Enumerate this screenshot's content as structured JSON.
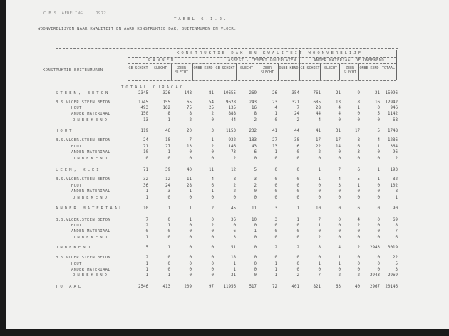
{
  "header_line": "C.B.S. AFDELING ... 1972",
  "table_number": "TABEL 6.1.2.",
  "title": "WOONVERBLIJVEN NAAR KWALITEIT EN AARD KONSTRUKTIE DAK, BUITENMUREN EN VLOER.",
  "table": {
    "row_header": "KONSTRUKTIE BUITENMUREN",
    "super_header": "KONSTRUKTIE DAK EN KWALITEIT WOONVERBLIJF",
    "groups": [
      "PANNEN",
      "ASBEST - CEMENT GOLFPLATEN",
      "ANDER MATERIAAL OF ONBEKEND"
    ],
    "columns": [
      "GE-SCHIKT",
      "SLECHT",
      "ZEER SLECHT",
      "ONBE-KEND",
      "GE-SCHIKT",
      "SLECHT",
      "ZEER SLECHT",
      "ONBE-KEND",
      "GE-SCHIKT",
      "SLECHT",
      "ZEER SLECHT",
      "ONBE-KEND",
      "TOTAAL"
    ],
    "section_title": "TOTAAL CURACAO",
    "rows": [
      {
        "label": "STEEN, BETON",
        "level": 0,
        "values": [
          2345,
          326,
          148,
          81,
          10655,
          269,
          26,
          354,
          761,
          21,
          9,
          21,
          15096
        ]
      },
      {
        "label": "B.S.VLOER.STEEN.BETON",
        "level": 1,
        "values": [
          1745,
          155,
          65,
          54,
          9628,
          243,
          23,
          321,
          685,
          13,
          8,
          16,
          12942
        ]
      },
      {
        "label": "HOUT",
        "level": 2,
        "values": [
          493,
          162,
          75,
          25,
          135,
          16,
          4,
          7,
          28,
          4,
          1,
          0,
          946
        ]
      },
      {
        "label": "ANDER MATERIAAL",
        "level": 2,
        "values": [
          150,
          8,
          8,
          2,
          888,
          8,
          1,
          24,
          44,
          4,
          0,
          5,
          1142
        ]
      },
      {
        "label": "ONBEKEND",
        "level": 3,
        "values": [
          13,
          1,
          2,
          0,
          44,
          2,
          0,
          2,
          4,
          0,
          0,
          0,
          68
        ]
      },
      {
        "label": "HOUT",
        "level": 0,
        "values": [
          119,
          46,
          20,
          3,
          1153,
          232,
          41,
          44,
          41,
          31,
          17,
          5,
          1748
        ]
      },
      {
        "label": "B.S.VLOER.STEEN.BETON",
        "level": 1,
        "values": [
          24,
          18,
          7,
          1,
          932,
          183,
          27,
          38,
          17,
          17,
          8,
          4,
          1286
        ]
      },
      {
        "label": "HOUT",
        "level": 2,
        "values": [
          71,
          27,
          13,
          2,
          146,
          43,
          13,
          6,
          22,
          14,
          6,
          1,
          364
        ]
      },
      {
        "label": "ANDER MATERIAAL",
        "level": 2,
        "values": [
          10,
          1,
          0,
          0,
          73,
          6,
          1,
          0,
          2,
          0,
          3,
          0,
          96
        ]
      },
      {
        "label": "ONBEKEND",
        "level": 3,
        "values": [
          0,
          0,
          0,
          0,
          2,
          0,
          0,
          0,
          0,
          0,
          0,
          0,
          2
        ]
      },
      {
        "label": "LEEM, KLEI",
        "level": 0,
        "values": [
          71,
          39,
          40,
          11,
          12,
          5,
          0,
          0,
          1,
          7,
          6,
          1,
          193
        ]
      },
      {
        "label": "B.S.VLOER.STEEN.BETON",
        "level": 1,
        "values": [
          32,
          12,
          11,
          4,
          8,
          3,
          0,
          0,
          1,
          4,
          5,
          1,
          82
        ]
      },
      {
        "label": "HOUT",
        "level": 2,
        "values": [
          36,
          24,
          28,
          6,
          2,
          2,
          0,
          0,
          0,
          3,
          1,
          0,
          102
        ]
      },
      {
        "label": "ANDER MATERIAAL",
        "level": 2,
        "values": [
          1,
          3,
          1,
          1,
          2,
          0,
          0,
          0,
          0,
          0,
          0,
          0,
          8
        ]
      },
      {
        "label": "ONBEKEND",
        "level": 3,
        "values": [
          1,
          0,
          0,
          0,
          0,
          0,
          0,
          0,
          0,
          0,
          0,
          0,
          1
        ]
      },
      {
        "label": "ANDER MATERIAAL",
        "level": 0,
        "values": [
          10,
          1,
          1,
          2,
          45,
          11,
          3,
          1,
          10,
          0,
          6,
          0,
          90
        ]
      },
      {
        "label": "B.S.VLOER.STEEN.BETON",
        "level": 1,
        "values": [
          7,
          0,
          1,
          0,
          36,
          10,
          3,
          1,
          7,
          0,
          4,
          0,
          69
        ]
      },
      {
        "label": "HOUT",
        "level": 2,
        "values": [
          2,
          1,
          0,
          2,
          0,
          0,
          0,
          0,
          1,
          0,
          2,
          0,
          8
        ]
      },
      {
        "label": "ANDER MATERIAAL",
        "level": 2,
        "values": [
          0,
          0,
          0,
          0,
          6,
          1,
          0,
          0,
          0,
          0,
          0,
          0,
          7
        ]
      },
      {
        "label": "ONBEKEND",
        "level": 3,
        "values": [
          1,
          0,
          0,
          0,
          3,
          0,
          0,
          0,
          2,
          0,
          0,
          0,
          6
        ]
      },
      {
        "label": "ONBEKEND",
        "level": 0,
        "values": [
          5,
          1,
          0,
          0,
          51,
          0,
          2,
          2,
          8,
          4,
          2,
          2943,
          3019
        ]
      },
      {
        "label": "B.S.VLOER.STEEN.BETON",
        "level": 1,
        "values": [
          2,
          0,
          0,
          0,
          18,
          0,
          0,
          0,
          0,
          1,
          0,
          0,
          22
        ]
      },
      {
        "label": "HOUT",
        "level": 2,
        "values": [
          1,
          0,
          0,
          0,
          1,
          0,
          1,
          0,
          1,
          1,
          0,
          0,
          5
        ]
      },
      {
        "label": "ANDER MATERIAAL",
        "level": 2,
        "values": [
          1,
          0,
          0,
          0,
          1,
          0,
          1,
          0,
          0,
          0,
          0,
          0,
          3
        ]
      },
      {
        "label": "ONBEKEND",
        "level": 3,
        "values": [
          1,
          1,
          0,
          0,
          31,
          0,
          1,
          2,
          7,
          2,
          2,
          2943,
          2969
        ]
      },
      {
        "label": "TOTAAL",
        "level": 0,
        "values": [
          2546,
          413,
          209,
          97,
          11956,
          517,
          72,
          401,
          821,
          63,
          40,
          2967,
          20146
        ]
      }
    ]
  }
}
